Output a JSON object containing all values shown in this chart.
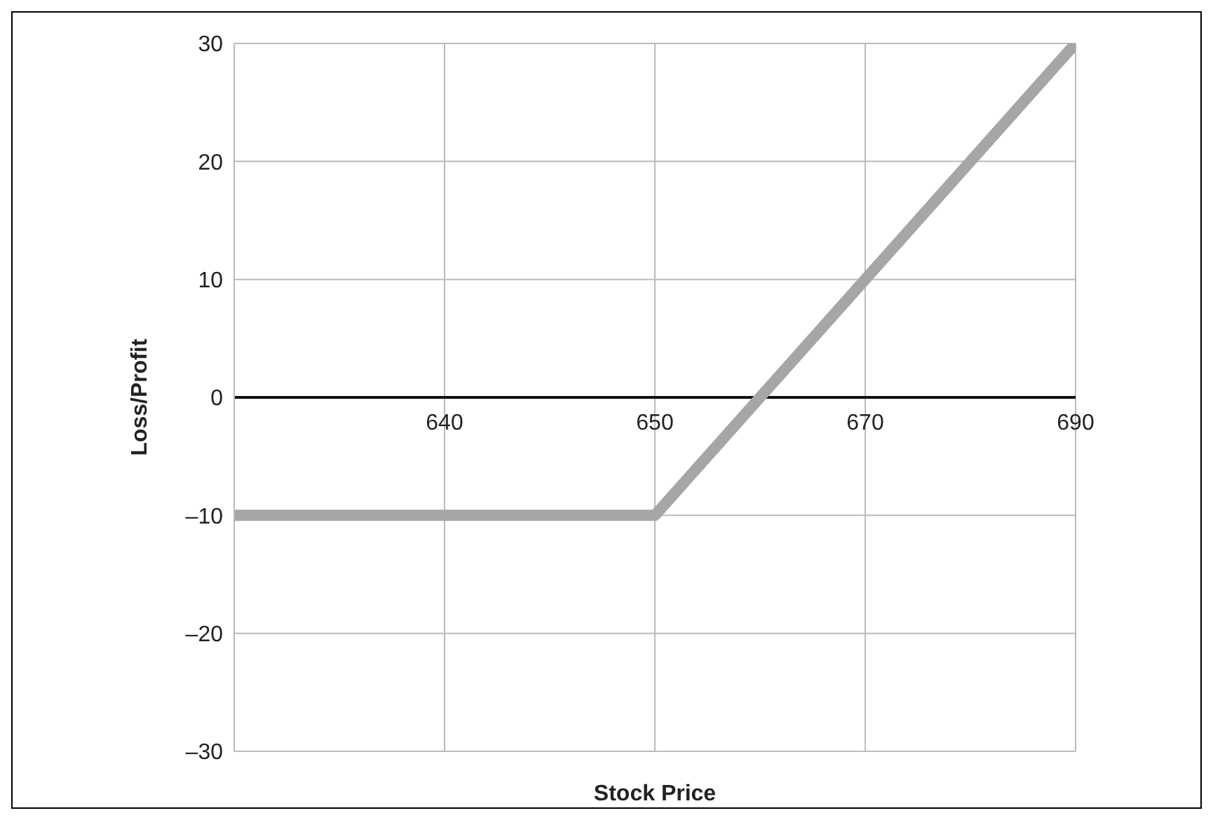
{
  "chart_data": {
    "type": "line",
    "xlabel": "Stock Price",
    "ylabel": "Loss/Profit",
    "categories": [
      null,
      "640",
      "650",
      "670",
      "690"
    ],
    "series": [
      {
        "color": "#a6a6a6",
        "values": [
          -10,
          -10,
          -10,
          10,
          30
        ]
      }
    ],
    "ylim": [
      -30,
      30
    ],
    "yticks": [
      {
        "value": -30,
        "label": "–30"
      },
      {
        "value": -20,
        "label": "–20"
      },
      {
        "value": -10,
        "label": "–10"
      },
      0,
      10,
      20,
      30
    ],
    "grid": true,
    "marker": "none",
    "line_style": "solid"
  }
}
